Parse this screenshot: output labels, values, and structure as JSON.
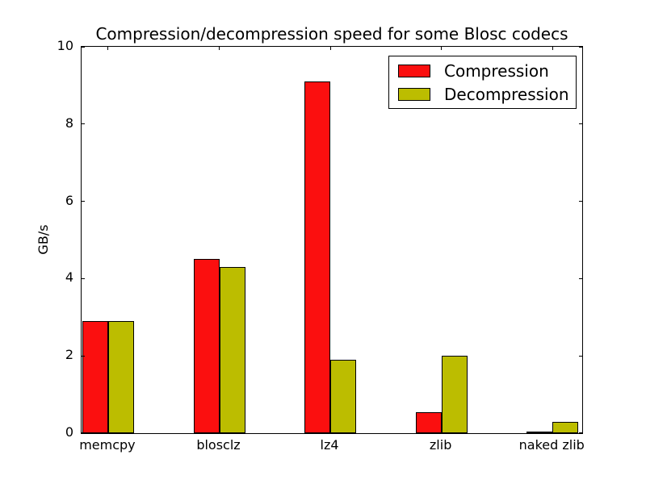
{
  "chart_data": {
    "type": "bar",
    "title": "Compression/decompression speed for some Blosc codecs",
    "ylabel": "GB/s",
    "xlabel": "",
    "categories": [
      "memcpy",
      "blosclz",
      "lz4",
      "zlib",
      "naked zlib"
    ],
    "series": [
      {
        "name": "Compression",
        "color": "#fb0f0f",
        "values": [
          2.9,
          4.5,
          9.1,
          0.55,
          0.05
        ]
      },
      {
        "name": "Decompression",
        "color": "#bcbd00",
        "values": [
          2.9,
          4.3,
          1.9,
          2.0,
          0.3
        ]
      }
    ],
    "ylim": [
      0,
      10
    ],
    "yticks": [
      0,
      2,
      4,
      6,
      8,
      10
    ],
    "legend_position": "upper right",
    "grid": false,
    "bar_edge_color": "#000000",
    "background_color": "#ffffff"
  }
}
